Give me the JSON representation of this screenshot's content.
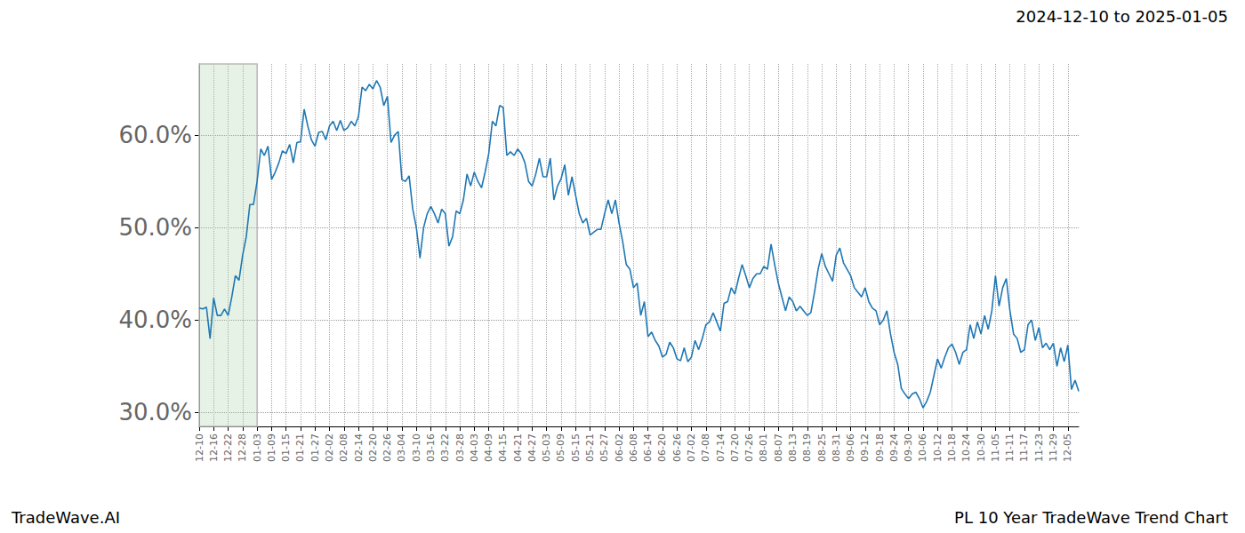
{
  "chart_data": {
    "type": "line",
    "title": "2024-12-10 to 2025-01-05",
    "footer_left": "TradeWave.AI",
    "footer_right": "PL 10 Year TradeWave Trend Chart",
    "color": "#1f77b4",
    "highlight_range": [
      "12-10",
      "01-03"
    ],
    "grid": true,
    "ylim": [
      28.5,
      67.7
    ],
    "yticks": [
      {
        "value": 30,
        "label": "30.0%"
      },
      {
        "value": 40,
        "label": "40.0%"
      },
      {
        "value": 50,
        "label": "50.0%"
      },
      {
        "value": 60,
        "label": "60.0%"
      }
    ],
    "categories": [
      "12-10",
      null,
      null,
      null,
      "12-16",
      null,
      null,
      null,
      "12-22",
      null,
      null,
      null,
      "12-28",
      null,
      null,
      null,
      "01-03",
      null,
      null,
      null,
      "01-09",
      null,
      null,
      null,
      "01-15",
      null,
      null,
      null,
      "01-21",
      null,
      null,
      null,
      "01-27",
      null,
      null,
      null,
      "02-02",
      null,
      null,
      null,
      "02-08",
      null,
      null,
      null,
      "02-14",
      null,
      null,
      null,
      "02-20",
      null,
      null,
      null,
      "02-26",
      null,
      null,
      null,
      "03-04",
      null,
      null,
      null,
      "03-10",
      null,
      null,
      null,
      "03-16",
      null,
      null,
      null,
      "03-22",
      null,
      null,
      null,
      "03-28",
      null,
      null,
      null,
      "04-03",
      null,
      null,
      null,
      "04-09",
      null,
      null,
      null,
      "04-15",
      null,
      null,
      null,
      "04-21",
      null,
      null,
      null,
      "04-27",
      null,
      null,
      null,
      "05-03",
      null,
      null,
      null,
      "05-09",
      null,
      null,
      null,
      "05-15",
      null,
      null,
      null,
      "05-21",
      null,
      null,
      null,
      "05-27",
      null,
      null,
      null,
      "06-02",
      null,
      null,
      null,
      "06-08",
      null,
      null,
      null,
      "06-14",
      null,
      null,
      null,
      "06-20",
      null,
      null,
      null,
      "06-26",
      null,
      null,
      null,
      "07-02",
      null,
      null,
      null,
      "07-08",
      null,
      null,
      null,
      "07-14",
      null,
      null,
      null,
      "07-20",
      null,
      null,
      null,
      "07-26",
      null,
      null,
      null,
      "08-01",
      null,
      null,
      null,
      "08-07",
      null,
      null,
      null,
      "08-13",
      null,
      null,
      null,
      "08-19",
      null,
      null,
      null,
      "08-25",
      null,
      null,
      null,
      "08-31",
      null,
      null,
      null,
      "09-06",
      null,
      null,
      null,
      "09-12",
      null,
      null,
      null,
      "09-18",
      null,
      null,
      null,
      "09-24",
      null,
      null,
      null,
      "09-30",
      null,
      null,
      null,
      "10-06",
      null,
      null,
      null,
      "10-12",
      null,
      null,
      null,
      "10-18",
      null,
      null,
      null,
      "10-24",
      null,
      null,
      null,
      "10-30",
      null,
      null,
      null,
      "11-05",
      null,
      null,
      null,
      "11-11",
      null,
      null,
      null,
      "11-17",
      null,
      null,
      null,
      "11-23",
      null,
      null,
      null,
      "11-29",
      null,
      null,
      null,
      "12-05",
      null,
      null,
      null
    ],
    "values": [
      41.3,
      41.2,
      41.4,
      38.0,
      42.4,
      40.5,
      40.5,
      41.2,
      40.5,
      42.5,
      44.8,
      44.3,
      47.0,
      49.0,
      52.5,
      52.5,
      55.0,
      58.5,
      57.8,
      58.8,
      55.2,
      56.0,
      57.0,
      58.3,
      58.0,
      59.0,
      57.0,
      59.2,
      59.3,
      62.8,
      61.0,
      59.5,
      58.8,
      60.3,
      60.4,
      59.5,
      61.0,
      61.5,
      60.5,
      61.6,
      60.5,
      60.8,
      61.5,
      61.0,
      62.0,
      65.2,
      64.8,
      65.5,
      65.0,
      65.9,
      65.2,
      63.2,
      64.2,
      59.2,
      60.0,
      60.4,
      55.2,
      55.0,
      55.6,
      52.0,
      50.0,
      46.7,
      50.0,
      51.5,
      52.3,
      51.5,
      50.5,
      52.0,
      51.5,
      48.0,
      49.0,
      51.8,
      51.5,
      53.0,
      55.8,
      54.5,
      56.0,
      55.0,
      54.3,
      56.0,
      58.0,
      61.5,
      61.0,
      63.2,
      63.0,
      57.8,
      58.2,
      57.8,
      58.5,
      58.0,
      57.0,
      55.0,
      54.5,
      55.8,
      57.5,
      55.5,
      55.5,
      57.5,
      53.0,
      54.5,
      55.3,
      56.8,
      53.5,
      55.5,
      53.5,
      51.5,
      50.5,
      51.0,
      49.2,
      49.5,
      49.8,
      49.8,
      51.5,
      53.0,
      51.5,
      53.0,
      50.5,
      48.5,
      46.0,
      45.5,
      43.5,
      44.0,
      40.5,
      42.0,
      38.2,
      38.7,
      37.8,
      37.2,
      36.0,
      36.3,
      37.6,
      37.0,
      35.8,
      35.6,
      37.0,
      35.5,
      36.0,
      37.8,
      36.8,
      38.0,
      39.5,
      39.8,
      40.8,
      39.8,
      38.8,
      41.8,
      42.0,
      43.5,
      42.8,
      44.5,
      46.0,
      44.8,
      43.5,
      44.5,
      45.0,
      45.0,
      45.8,
      45.5,
      48.2,
      46.0,
      44.0,
      42.5,
      41.0,
      42.5,
      42.0,
      41.0,
      41.5,
      41.0,
      40.5,
      40.8,
      43.0,
      45.5,
      47.2,
      45.8,
      45.0,
      44.2,
      47.0,
      47.8,
      46.2,
      45.5,
      44.8,
      43.5,
      43.0,
      42.5,
      43.5,
      42.0,
      41.3,
      41.0,
      39.5,
      40.0,
      41.0,
      38.5,
      36.5,
      35.2,
      32.6,
      32.0,
      31.5,
      32.0,
      32.2,
      31.5,
      30.5,
      31.2,
      32.2,
      34.0,
      35.8,
      34.8,
      36.0,
      37.0,
      37.4,
      36.5,
      35.2,
      36.5,
      36.8,
      39.5,
      38.0,
      39.8,
      38.5,
      40.5,
      39.0,
      41.0,
      44.8,
      41.5,
      43.5,
      44.5,
      41.0,
      38.5,
      38.0,
      36.5,
      36.8,
      39.5,
      40.0,
      37.8,
      39.2,
      37.0,
      37.5,
      36.8,
      37.5,
      35.0,
      37.0,
      35.5,
      37.3,
      32.5,
      33.5,
      32.3
    ]
  }
}
